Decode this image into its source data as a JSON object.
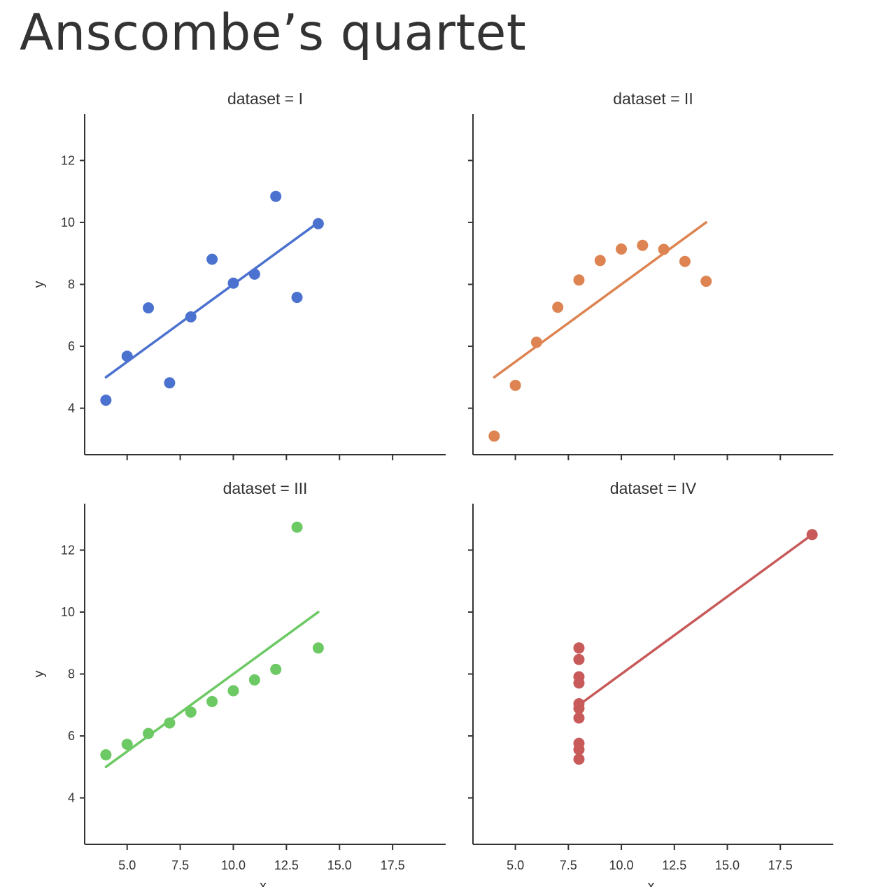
{
  "page": {
    "title": "Anscombe’s quartet"
  },
  "chart_data": {
    "type": "scatter",
    "layout": "2x2 grid, shared x and y axes",
    "xlabel": "x",
    "ylabel": "y",
    "xlim": [
      3,
      20
    ],
    "ylim": [
      2.5,
      13.5
    ],
    "xticks": [
      5.0,
      7.5,
      10.0,
      12.5,
      15.0,
      17.5
    ],
    "xtick_labels": [
      "5.0",
      "7.5",
      "10.0",
      "12.5",
      "15.0",
      "17.5"
    ],
    "yticks": [
      4,
      6,
      8,
      10,
      12
    ],
    "ytick_labels": [
      "4",
      "6",
      "8",
      "10",
      "12"
    ],
    "grid": false,
    "regression": {
      "intercept": 3.0,
      "slope": 0.5
    },
    "panels": [
      {
        "title": "dataset = I",
        "color": "#4c72cf",
        "x": [
          10,
          8,
          13,
          9,
          11,
          14,
          6,
          4,
          12,
          7,
          5
        ],
        "y": [
          8.04,
          6.95,
          7.58,
          8.81,
          8.33,
          9.96,
          7.24,
          4.26,
          10.84,
          4.82,
          5.68
        ],
        "fit_x_range": [
          4,
          14
        ]
      },
      {
        "title": "dataset = II",
        "color": "#dd8452",
        "x": [
          10,
          8,
          13,
          9,
          11,
          14,
          6,
          4,
          12,
          7,
          5
        ],
        "y": [
          9.14,
          8.14,
          8.74,
          8.77,
          9.26,
          8.1,
          6.13,
          3.1,
          9.13,
          7.26,
          4.74
        ],
        "fit_x_range": [
          4,
          14
        ]
      },
      {
        "title": "dataset = III",
        "color": "#6cc964",
        "x": [
          10,
          8,
          13,
          9,
          11,
          14,
          6,
          4,
          12,
          7,
          5
        ],
        "y": [
          7.46,
          6.77,
          12.74,
          7.11,
          7.81,
          8.84,
          6.08,
          5.39,
          8.15,
          6.42,
          5.73
        ],
        "fit_x_range": [
          4,
          14
        ]
      },
      {
        "title": "dataset = IV",
        "color": "#c85a5a",
        "x": [
          8,
          8,
          8,
          8,
          8,
          8,
          8,
          19,
          8,
          8,
          8
        ],
        "y": [
          6.58,
          5.76,
          7.71,
          8.84,
          8.47,
          7.04,
          5.25,
          12.5,
          5.56,
          7.91,
          6.89
        ],
        "fit_x_range": [
          8,
          19
        ]
      }
    ]
  }
}
